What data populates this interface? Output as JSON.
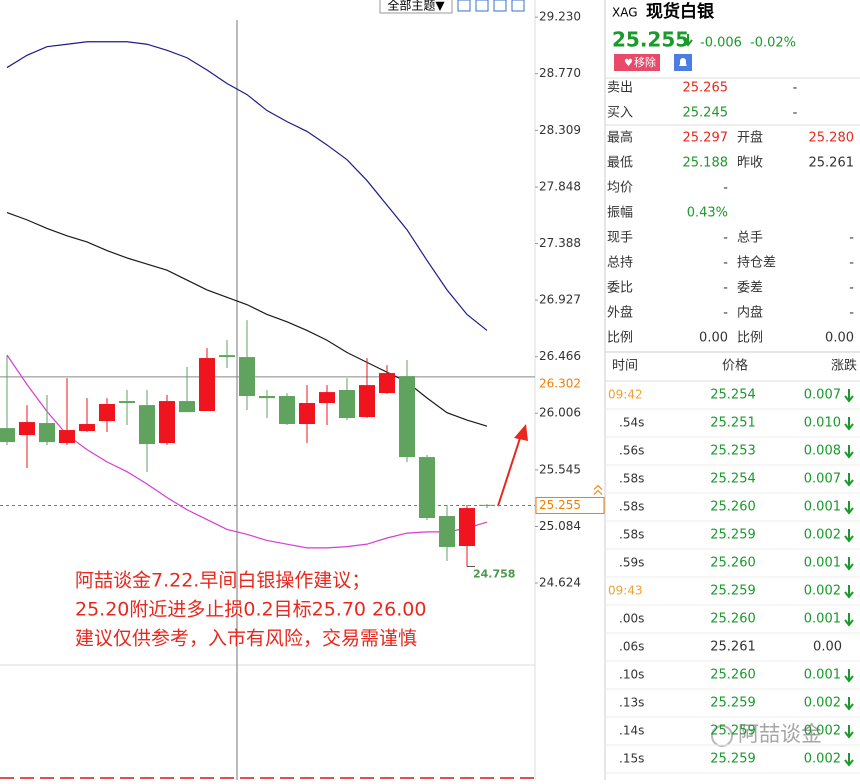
{
  "toolbar": {
    "theme_button": "全部主题▼"
  },
  "chart_data": {
    "type": "candlestick",
    "candles": {
      "open": [
        25.885,
        25.828,
        25.926,
        25.763,
        25.861,
        25.942,
        26.105,
        26.072,
        25.763,
        26.105,
        26.024,
        26.479,
        26.463,
        26.146,
        26.146,
        25.918,
        26.089,
        26.195,
        25.975,
        26.17,
        26.308,
        25.649,
        25.169,
        24.925,
        25.26
      ],
      "high": [
        26.479,
        26.072,
        26.154,
        26.292,
        26.129,
        26.129,
        26.195,
        26.195,
        26.154,
        26.382,
        26.536,
        26.601,
        26.764,
        26.195,
        26.17,
        26.235,
        26.235,
        26.292,
        26.455,
        26.398,
        26.439,
        25.666,
        25.259,
        25.259,
        25.265
      ],
      "low": [
        25.747,
        25.56,
        25.747,
        25.747,
        25.853,
        25.853,
        25.91,
        25.527,
        25.747,
        26.015,
        26.024,
        26.374,
        26.032,
        25.967,
        25.91,
        25.763,
        25.91,
        25.95,
        25.967,
        26.162,
        25.609,
        25.137,
        24.803,
        24.758,
        25.234
      ],
      "close": [
        25.771,
        25.934,
        25.771,
        25.869,
        25.918,
        26.081,
        26.089,
        25.755,
        26.105,
        26.015,
        26.455,
        26.463,
        26.146,
        26.129,
        25.918,
        26.089,
        26.178,
        25.967,
        26.235,
        26.333,
        25.649,
        25.153,
        24.917,
        25.234,
        25.255
      ],
      "up_color": "#f0141e",
      "down_color": "#5fa35f"
    },
    "series": [
      {
        "color": "#1c1c8c",
        "values": [
          28.82,
          28.92,
          28.99,
          29.01,
          29.03,
          29.03,
          29.03,
          29.01,
          28.96,
          28.9,
          28.8,
          28.69,
          28.6,
          28.47,
          28.38,
          28.3,
          28.19,
          28.07,
          27.9,
          27.7,
          27.5,
          27.25,
          27.01,
          26.81,
          26.68
        ]
      },
      {
        "color": "#1a1a1a",
        "values": [
          27.64,
          27.58,
          27.51,
          27.45,
          27.4,
          27.33,
          27.27,
          27.22,
          27.17,
          27.09,
          27.01,
          26.95,
          26.89,
          26.81,
          26.75,
          26.68,
          26.6,
          26.5,
          26.42,
          26.34,
          26.26,
          26.13,
          26.01,
          25.95,
          25.9
        ]
      },
      {
        "color": "#d63cd6",
        "values": [
          26.48,
          26.24,
          26.02,
          25.83,
          25.71,
          25.61,
          25.53,
          25.43,
          25.32,
          25.22,
          25.14,
          25.06,
          25.02,
          24.97,
          24.94,
          24.91,
          24.91,
          24.92,
          24.94,
          24.99,
          25.03,
          25.04,
          25.04,
          25.07,
          25.12
        ]
      }
    ],
    "ylim": [
      23.02,
      29.37
    ],
    "yticks": [
      {
        "value": 29.23,
        "label": "29.230"
      },
      {
        "value": 28.77,
        "label": "28.770"
      },
      28.309,
      27.848,
      27.388,
      26.927,
      26.466,
      26.006,
      25.545,
      25.084,
      24.624
    ],
    "grid": false,
    "price_line": 26.302,
    "last_price": 25.255,
    "low_label": 24.758,
    "annotation": [
      "阿喆谈金7.22.早间白银操作建议；",
      "25.20附近进多止损0.2目标25.70 26.00",
      "建议仅供参考，入市有风险，交易需谨慎"
    ]
  },
  "quote": {
    "symbol": "XAG",
    "name": "现货白银",
    "price": "25.255",
    "change": "-0.006",
    "change_pct": "-0.02%",
    "remove_button": "移除",
    "rows": [
      [
        "卖出",
        "25.265",
        "-"
      ],
      [
        "买入",
        "25.245",
        "-"
      ],
      [
        "最高",
        "25.297",
        "开盘",
        "25.280"
      ],
      [
        "最低",
        "25.188",
        "昨收",
        "25.261"
      ],
      [
        "均价",
        "-"
      ],
      [
        "振幅",
        "0.43%"
      ],
      [
        "现手",
        "-",
        "总手",
        "-"
      ],
      [
        "总持",
        "-",
        "持仓差",
        "-"
      ],
      [
        "委比",
        "-",
        "委差",
        "-"
      ],
      [
        "外盘",
        "-",
        "内盘",
        "-"
      ],
      [
        "比例",
        "0.00",
        "比例",
        "0.00"
      ]
    ]
  },
  "trades": {
    "header": [
      "时间",
      "价格",
      "涨跌"
    ],
    "rows": [
      [
        "09:42",
        "25.254",
        "0.007"
      ],
      [
        ".54s",
        "25.251",
        "0.010"
      ],
      [
        ".56s",
        "25.253",
        "0.008"
      ],
      [
        ".58s",
        "25.254",
        "0.007"
      ],
      [
        ".58s",
        "25.260",
        "0.001"
      ],
      [
        ".58s",
        "25.259",
        "0.002"
      ],
      [
        ".59s",
        "25.260",
        "0.001"
      ],
      [
        "09:43",
        "25.259",
        "0.002"
      ],
      [
        ".00s",
        "25.260",
        "0.001"
      ],
      [
        ".06s",
        "25.261",
        "0.00"
      ],
      [
        ".10s",
        "25.260",
        "0.001"
      ],
      [
        ".13s",
        "25.259",
        "0.002"
      ],
      [
        ".14s",
        "25.259",
        "0.002"
      ],
      [
        ".15s",
        "25.259",
        "0.002"
      ]
    ]
  },
  "watermark": "阿喆谈金"
}
